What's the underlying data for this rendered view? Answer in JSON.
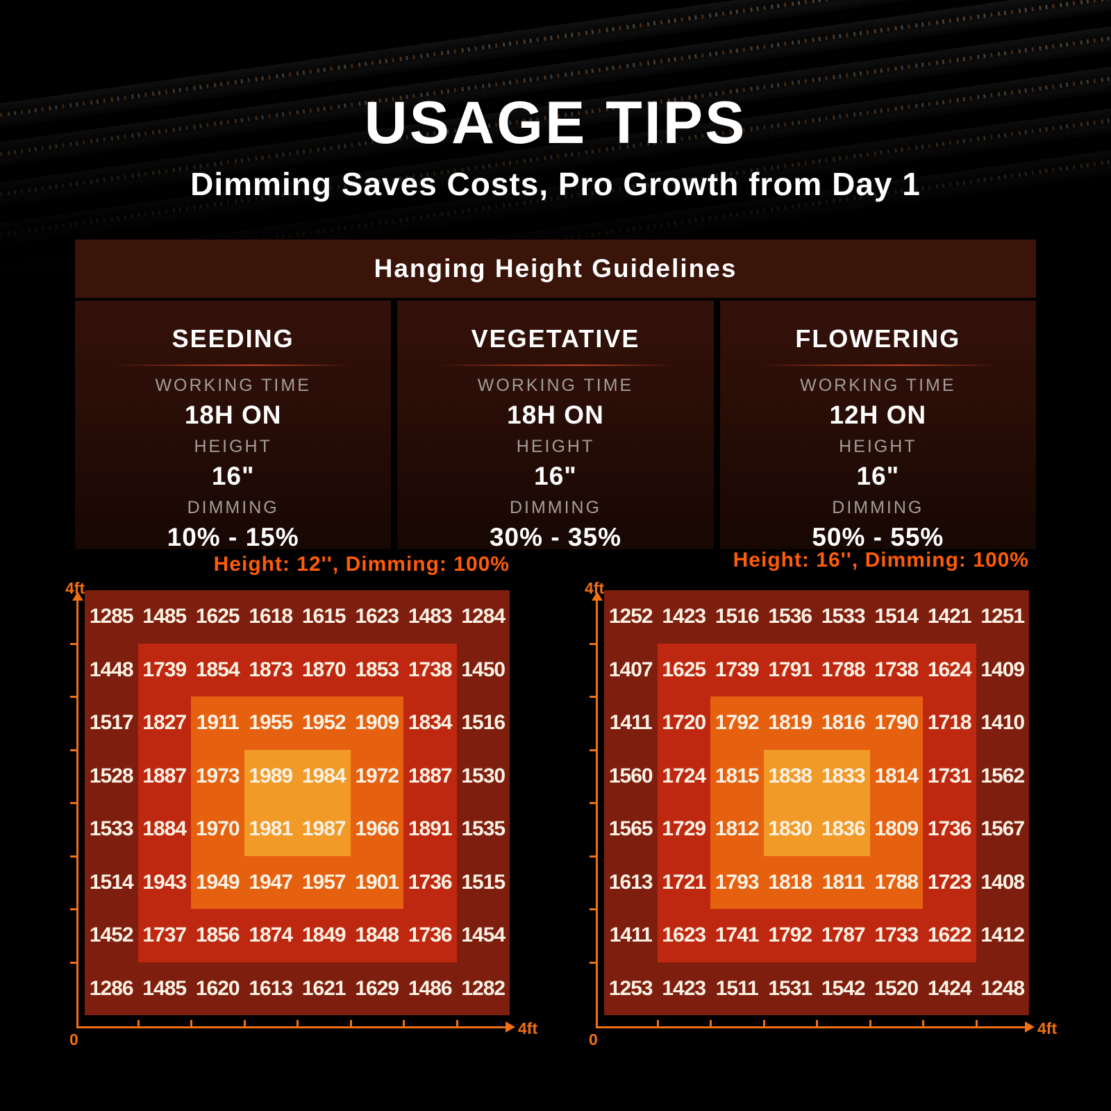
{
  "header": {
    "title": "USAGE TIPS",
    "subtitle": "Dimming Saves Costs, Pro Growth from Day 1"
  },
  "guidelines": {
    "header": "Hanging Height Guidelines",
    "labels": {
      "working_time": "WORKING TIME",
      "height": "HEIGHT",
      "dimming": "DIMMING"
    },
    "stages": [
      {
        "name": "SEEDING",
        "working_time": "18H ON",
        "height": "16\"",
        "dimming": "10% - 15%"
      },
      {
        "name": "VEGETATIVE",
        "working_time": "18H ON",
        "height": "16\"",
        "dimming": "30% - 35%"
      },
      {
        "name": "FLOWERING",
        "working_time": "12H ON",
        "height": "16\"",
        "dimming": "50% - 55%"
      }
    ]
  },
  "colors": {
    "chart_title_orange": "#ff5c05",
    "axis_orange": "#f07014",
    "guideline_header_bg": "#3a1309",
    "label_gray": "#a39d99"
  },
  "chart_data": [
    {
      "type": "heatmap",
      "title": "Height: 12'', Dimming: 100%",
      "x_axis": {
        "min_label": "0",
        "max_label": "4ft",
        "range_ft": [
          0,
          4
        ]
      },
      "y_axis": {
        "max_label": "4ft",
        "range_ft": [
          0,
          4
        ]
      },
      "grid_size": "8x8",
      "band_colors": [
        "#7e1e0f",
        "#bf2810",
        "#e5600f",
        "#f29a28"
      ],
      "values": [
        [
          1285,
          1485,
          1625,
          1618,
          1615,
          1623,
          1483,
          1284
        ],
        [
          1448,
          1739,
          1854,
          1873,
          1870,
          1853,
          1738,
          1450
        ],
        [
          1517,
          1827,
          1911,
          1955,
          1952,
          1909,
          1834,
          1516
        ],
        [
          1528,
          1887,
          1973,
          1989,
          1984,
          1972,
          1887,
          1530
        ],
        [
          1533,
          1884,
          1970,
          1981,
          1987,
          1966,
          1891,
          1535
        ],
        [
          1514,
          1943,
          1949,
          1947,
          1957,
          1901,
          1736,
          1515
        ],
        [
          1452,
          1737,
          1856,
          1874,
          1849,
          1848,
          1736,
          1454
        ],
        [
          1286,
          1485,
          1620,
          1613,
          1621,
          1629,
          1486,
          1282
        ]
      ]
    },
    {
      "type": "heatmap",
      "title": "Height: 16'', Dimming: 100%",
      "x_axis": {
        "min_label": "0",
        "max_label": "4ft",
        "range_ft": [
          0,
          4
        ]
      },
      "y_axis": {
        "max_label": "4ft",
        "range_ft": [
          0,
          4
        ]
      },
      "grid_size": "8x8",
      "band_colors": [
        "#7e1e0f",
        "#bf2810",
        "#e5600f",
        "#f29a28"
      ],
      "values": [
        [
          1252,
          1423,
          1516,
          1536,
          1533,
          1514,
          1421,
          1251
        ],
        [
          1407,
          1625,
          1739,
          1791,
          1788,
          1738,
          1624,
          1409
        ],
        [
          1411,
          1720,
          1792,
          1819,
          1816,
          1790,
          1718,
          1410
        ],
        [
          1560,
          1724,
          1815,
          1838,
          1833,
          1814,
          1731,
          1562
        ],
        [
          1565,
          1729,
          1812,
          1830,
          1836,
          1809,
          1736,
          1567
        ],
        [
          1613,
          1721,
          1793,
          1818,
          1811,
          1788,
          1723,
          1408
        ],
        [
          1411,
          1623,
          1741,
          1792,
          1787,
          1733,
          1622,
          1412
        ],
        [
          1253,
          1423,
          1511,
          1531,
          1542,
          1520,
          1424,
          1248
        ]
      ]
    }
  ]
}
